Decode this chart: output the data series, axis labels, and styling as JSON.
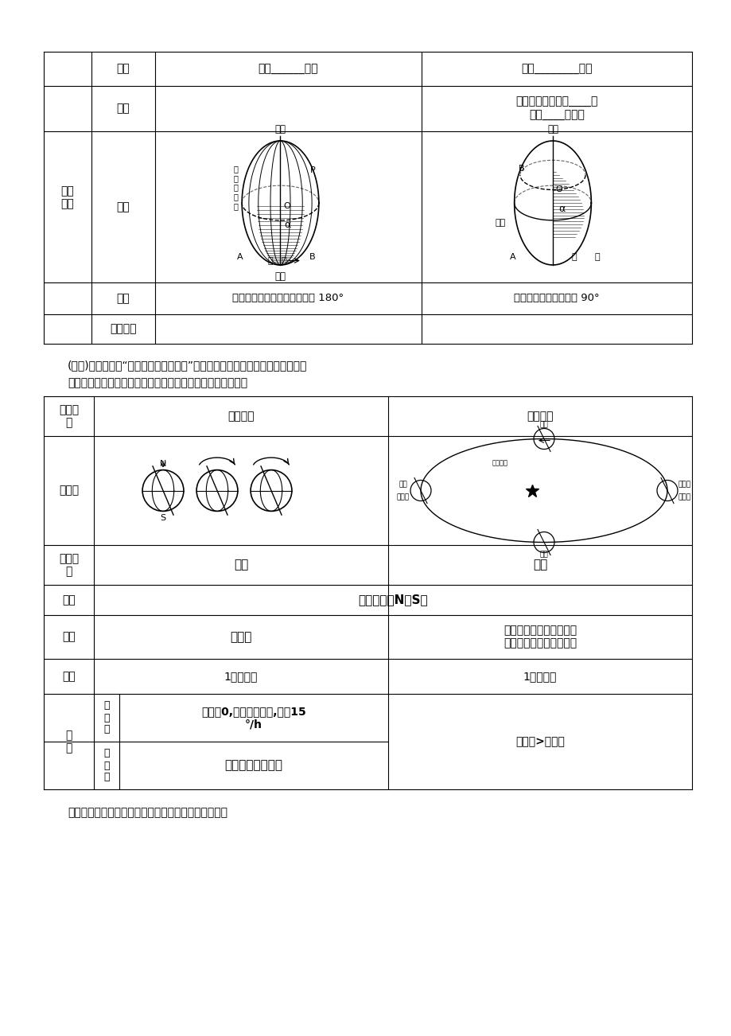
{
  "bg_color": "#ffffff",
  "text_color": "#000000",
  "row1_col1": "指示______方向",
  "row1_col2": "指示________方向",
  "row2_col2": "自赤道向两极逐渐____，\n其中____最长。",
  "row4_col1": "从本初子午线向东、向西各分 180°",
  "row4_col2": "从赤道向南、向北各分 90°",
  "activity_text": "(活动)阅读第一目“地球运动的一般特点”，填表比较地球自转与公转运动的异同",
  "activity_text2": "（教师到下面跟踪指导，点拨；随学生回答逐步呼现粗体字）",
  "footer_text": "师：那为什么地球自转周期不是太阳日而是恒星日呢？"
}
